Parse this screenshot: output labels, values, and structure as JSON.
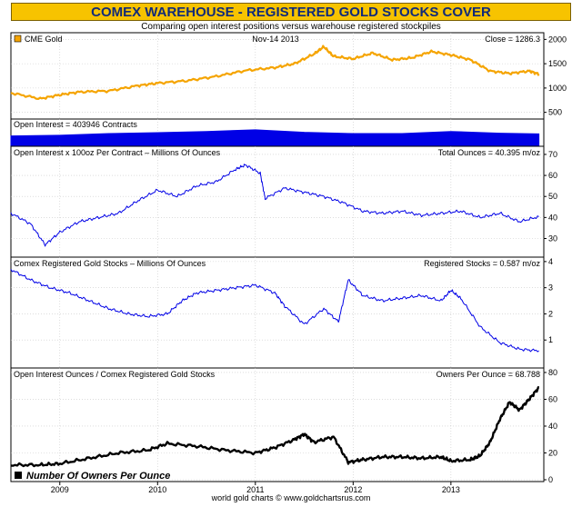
{
  "title": "COMEX WAREHOUSE - REGISTERED GOLD STOCKS COVER",
  "subtitle": "Comparing open interest positions versus warehouse registered stockpiles",
  "footer": "world gold charts © www.goldchartsrus.com",
  "colors": {
    "gold": "#f5a400",
    "blue": "#0000e6",
    "black": "#000000",
    "title_bg": "#f7c300",
    "title_text": "#102a7a"
  },
  "chart_data": {
    "type": "line",
    "x_axis": {
      "ticks": [
        "2009",
        "2010",
        "2011",
        "2012",
        "2013"
      ]
    },
    "panels": [
      {
        "name": "cme-gold",
        "legend": "CME Gold",
        "date": "Nov-14  2013",
        "readout": "Close = 1286.3",
        "y_ticks": [
          "500",
          "1000",
          "1500",
          "2000"
        ],
        "ylim": [
          400,
          2100
        ],
        "series": {
          "x": [
            2008.5,
            2008.8,
            2009.0,
            2009.2,
            2009.5,
            2009.8,
            2010.0,
            2010.3,
            2010.6,
            2010.9,
            2011.2,
            2011.4,
            2011.6,
            2011.7,
            2011.8,
            2012.0,
            2012.2,
            2012.4,
            2012.6,
            2012.8,
            2013.0,
            2013.2,
            2013.4,
            2013.6,
            2013.8,
            2013.9
          ],
          "y": [
            900,
            780,
            860,
            920,
            940,
            1050,
            1100,
            1150,
            1240,
            1360,
            1420,
            1500,
            1700,
            1850,
            1650,
            1600,
            1720,
            1580,
            1620,
            1750,
            1680,
            1580,
            1350,
            1300,
            1350,
            1286
          ]
        }
      },
      {
        "name": "open-interest",
        "legend": "Open Interest = 403946 Contracts",
        "series": {
          "x": [
            2008.5,
            2009.0,
            2009.5,
            2010.0,
            2010.5,
            2011.0,
            2011.5,
            2012.0,
            2012.5,
            2013.0,
            2013.5,
            2013.9
          ],
          "y": [
            0.58,
            0.62,
            0.72,
            0.78,
            0.85,
            0.95,
            0.8,
            0.72,
            0.72,
            0.85,
            0.74,
            0.7
          ]
        }
      },
      {
        "name": "total-ounces",
        "legend": "Open Interest x 100oz Per Contract – Millions Of Ounces",
        "readout": "Total Ounces = 40.395 m/oz",
        "y_ticks": [
          "30",
          "40",
          "50",
          "60",
          "70"
        ],
        "ylim": [
          22,
          73
        ],
        "series": {
          "x": [
            2008.5,
            2008.7,
            2008.85,
            2009.0,
            2009.2,
            2009.4,
            2009.6,
            2009.8,
            2010.0,
            2010.2,
            2010.4,
            2010.6,
            2010.8,
            2010.9,
            2011.05,
            2011.1,
            2011.3,
            2011.5,
            2011.7,
            2011.9,
            2012.1,
            2012.3,
            2012.5,
            2012.7,
            2012.9,
            2013.1,
            2013.3,
            2013.5,
            2013.7,
            2013.9
          ],
          "y": [
            42,
            37,
            27,
            33,
            38,
            40,
            42,
            48,
            53,
            50,
            55,
            57,
            63,
            65,
            61,
            49,
            54,
            52,
            50,
            47,
            43,
            42,
            43,
            41,
            42,
            43,
            40,
            42,
            38,
            40.4
          ]
        }
      },
      {
        "name": "registered-stocks",
        "legend": "Comex Registered Gold Stocks – Millions Of Ounces",
        "readout": "Registered Stocks = 0.587 m/oz",
        "y_ticks": [
          "1",
          "2",
          "3",
          "4"
        ],
        "ylim": [
          0,
          4.1
        ],
        "series": {
          "x": [
            2008.5,
            2008.7,
            2008.9,
            2009.1,
            2009.3,
            2009.5,
            2009.7,
            2009.9,
            2010.1,
            2010.25,
            2010.4,
            2010.6,
            2010.8,
            2011.0,
            2011.2,
            2011.3,
            2011.5,
            2011.7,
            2011.85,
            2011.95,
            2012.1,
            2012.3,
            2012.5,
            2012.7,
            2012.9,
            2013.0,
            2013.1,
            2013.3,
            2013.5,
            2013.7,
            2013.9
          ],
          "y": [
            3.7,
            3.3,
            3.0,
            2.8,
            2.5,
            2.2,
            2.0,
            1.9,
            2.0,
            2.5,
            2.8,
            2.9,
            3.0,
            3.1,
            2.8,
            2.3,
            1.6,
            2.2,
            1.7,
            3.3,
            2.7,
            2.5,
            2.6,
            2.7,
            2.5,
            2.9,
            2.6,
            1.5,
            0.9,
            0.65,
            0.587
          ]
        }
      },
      {
        "name": "owners-per-ounce",
        "legend": "Open Interest Ounces / Comex Registered Gold Stocks",
        "readout": "Owners Per Ounce = 68.788",
        "y_ticks": [
          "0",
          "20",
          "40",
          "60",
          "80"
        ],
        "ylim": [
          0,
          82
        ],
        "series_label": "Number Of Owners Per Ounce",
        "series": {
          "x": [
            2008.5,
            2008.8,
            2009.0,
            2009.3,
            2009.6,
            2009.9,
            2010.1,
            2010.4,
            2010.7,
            2011.0,
            2011.2,
            2011.4,
            2011.5,
            2011.6,
            2011.8,
            2011.95,
            2012.1,
            2012.3,
            2012.5,
            2012.7,
            2012.9,
            2013.0,
            2013.2,
            2013.3,
            2013.4,
            2013.5,
            2013.6,
            2013.7,
            2013.8,
            2013.9
          ],
          "y": [
            11,
            11,
            12,
            16,
            20,
            22,
            27,
            25,
            22,
            20,
            24,
            30,
            34,
            28,
            32,
            13,
            15,
            17,
            17,
            16,
            17,
            14,
            15,
            18,
            28,
            45,
            58,
            52,
            60,
            68.8
          ]
        }
      }
    ]
  }
}
